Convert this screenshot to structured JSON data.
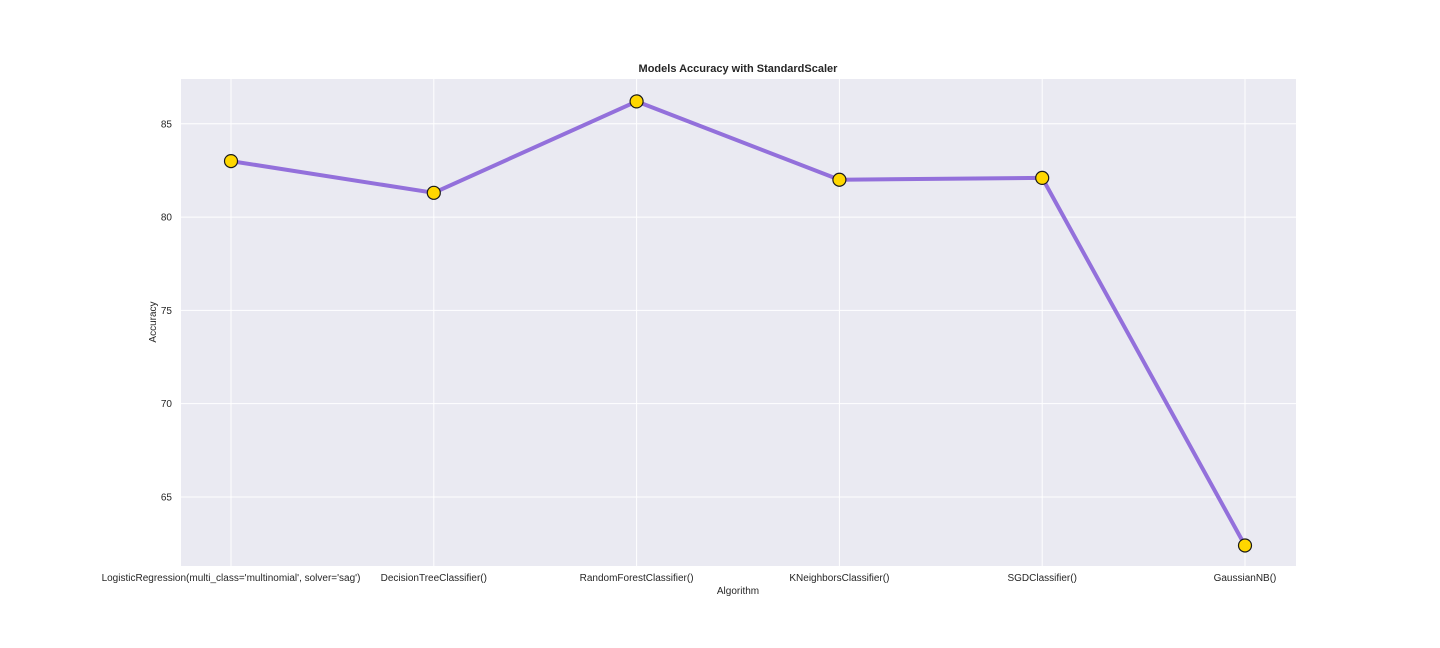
{
  "chart_data": {
    "type": "line",
    "title": "Models Accuracy with StandardScaler",
    "xlabel": "Algorithm",
    "ylabel": "Accuracy",
    "categories": [
      "LogisticRegression(multi_class='multinomial', solver='sag')",
      "DecisionTreeClassifier()",
      "RandomForestClassifier()",
      "KNeighborsClassifier()",
      "SGDClassifier()",
      "GaussianNB()"
    ],
    "values": [
      83.0,
      81.3,
      86.2,
      82.0,
      82.1,
      62.4
    ],
    "ylim": [
      61.3,
      87.4
    ],
    "yticks": [
      65,
      70,
      75,
      80,
      85
    ],
    "grid": true,
    "legend": "none",
    "colors": {
      "line": "#9370DB",
      "marker_fill": "#FFD700",
      "marker_edge": "#1a1a1a",
      "plot_background": "#EAEAF2",
      "grid": "#ffffff"
    }
  }
}
